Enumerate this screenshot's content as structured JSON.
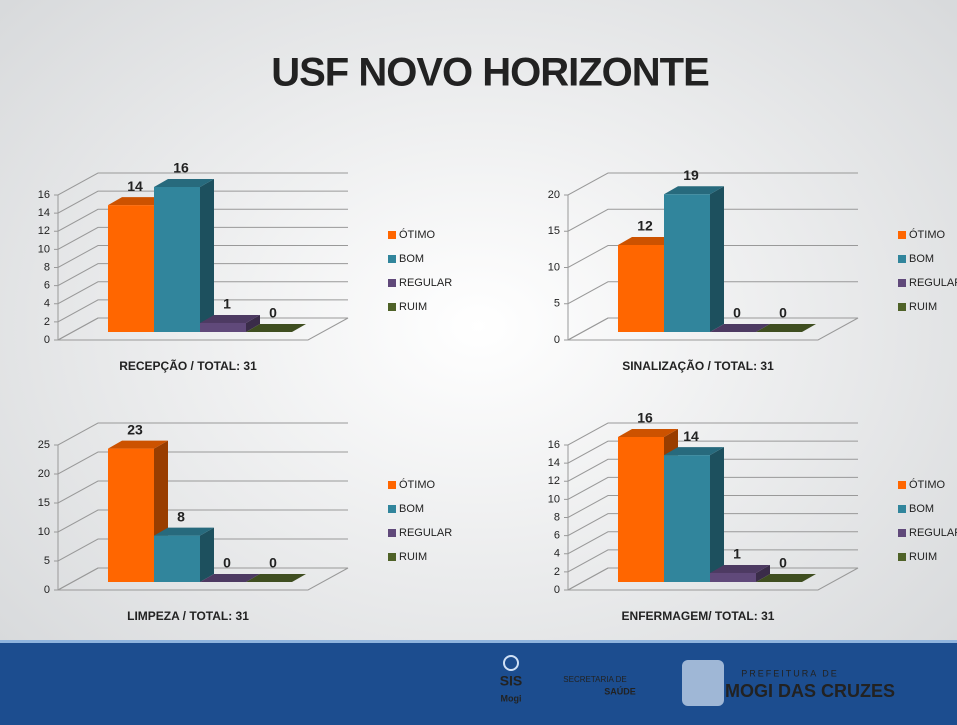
{
  "title": "USF NOVO HORIZONTE",
  "chart_data": [
    {
      "type": "bar",
      "title": "RECEPÇÃO / TOTAL: 31",
      "categories": [
        "ÓTIMO",
        "BOM",
        "REGULAR",
        "RUIM"
      ],
      "values": [
        14,
        16,
        1,
        0
      ],
      "colors": [
        "#ff6600",
        "#31859c",
        "#60497a",
        "#4f6228"
      ],
      "ylim": [
        0,
        16
      ],
      "yticks": [
        0,
        2,
        4,
        6,
        8,
        10,
        12,
        14,
        16
      ],
      "grid": true,
      "legend": "right"
    },
    {
      "type": "bar",
      "title": "SINALIZAÇÃO / TOTAL: 31",
      "categories": [
        "ÓTIMO",
        "BOM",
        "REGULAR",
        "RUIM"
      ],
      "values": [
        12,
        19,
        0,
        0
      ],
      "colors": [
        "#ff6600",
        "#31859c",
        "#60497a",
        "#4f6228"
      ],
      "ylim": [
        0,
        20
      ],
      "yticks": [
        0,
        5,
        10,
        15,
        20
      ],
      "grid": true,
      "legend": "right"
    },
    {
      "type": "bar",
      "title": "LIMPEZA / TOTAL: 31",
      "categories": [
        "ÓTIMO",
        "BOM",
        "REGULAR",
        "RUIM"
      ],
      "values": [
        23,
        8,
        0,
        0
      ],
      "colors": [
        "#ff6600",
        "#31859c",
        "#60497a",
        "#4f6228"
      ],
      "ylim": [
        0,
        25
      ],
      "yticks": [
        0,
        5,
        10,
        15,
        20,
        25
      ],
      "grid": true,
      "legend": "right"
    },
    {
      "type": "bar",
      "title": "ENFERMAGEM/ TOTAL: 31",
      "categories": [
        "ÓTIMO",
        "BOM",
        "REGULAR",
        "RUIM"
      ],
      "values": [
        16,
        14,
        1,
        0
      ],
      "colors": [
        "#ff6600",
        "#31859c",
        "#60497a",
        "#4f6228"
      ],
      "ylim": [
        0,
        16
      ],
      "yticks": [
        0,
        2,
        4,
        6,
        8,
        10,
        12,
        14,
        16
      ],
      "grid": true,
      "legend": "right"
    }
  ],
  "footer": {
    "sis": "SIS",
    "mogi": "Mogi",
    "secretaria": "SECRETARIA DE",
    "saude": "SAÚDE",
    "prefeitura": "PREFEITURA DE",
    "city": "MOGI DAS CRUZES"
  }
}
